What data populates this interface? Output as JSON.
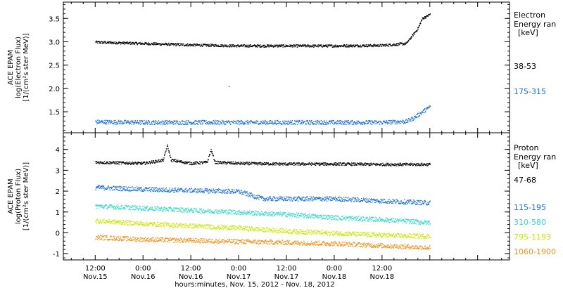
{
  "chart_data": [
    {
      "type": "scatter",
      "ylabel": [
        "ACE EPAM",
        "log(Electron Flux)",
        "[1/(cm²s ster MeV)]"
      ],
      "ylim": [
        1.05,
        3.85
      ],
      "yticks": [
        1.5,
        2.0,
        2.5,
        3.0,
        3.5
      ],
      "ytick_labels": [
        "1.5",
        "2.0",
        "2.5",
        "3.0",
        "3.5"
      ],
      "legend_title": [
        "Electron",
        "Energy ran",
        "[keV]"
      ],
      "series": [
        {
          "name": "38-53",
          "color": "#000000",
          "x": [
            0,
            12,
            24,
            36,
            48,
            60,
            72,
            78,
            81,
            82,
            84
          ],
          "y": [
            3.0,
            2.97,
            2.94,
            2.92,
            2.92,
            2.92,
            2.93,
            2.97,
            3.3,
            3.5,
            3.6
          ]
        },
        {
          "name": "175-315",
          "color": "#1a6fd6",
          "x": [
            0,
            12,
            24,
            36,
            48,
            60,
            72,
            78,
            80,
            82,
            84
          ],
          "y": [
            1.29,
            1.28,
            1.28,
            1.28,
            1.28,
            1.28,
            1.28,
            1.3,
            1.38,
            1.5,
            1.62
          ]
        }
      ],
      "annotations": [
        {
          "x": 33.5,
          "y": 2.05
        }
      ]
    },
    {
      "type": "scatter",
      "ylabel": [
        "ACE EPAM",
        "log(Proton Flux)",
        "[1/(cm²s ster MeV)]"
      ],
      "ylim": [
        -1.3,
        4.8
      ],
      "yticks": [
        -1,
        0,
        1,
        2,
        3,
        4
      ],
      "ytick_labels": [
        "-1",
        "0",
        "1",
        "2",
        "3",
        "4"
      ],
      "legend_title": [
        "Proton",
        "Energy ran",
        "[keV]"
      ],
      "series": [
        {
          "name": "47-68",
          "color": "#000000",
          "x": [
            0,
            12,
            17,
            18,
            19,
            24,
            28,
            29,
            30,
            36,
            48,
            60,
            72,
            84
          ],
          "y": [
            3.4,
            3.35,
            3.5,
            4.2,
            3.5,
            3.35,
            3.4,
            4.0,
            3.4,
            3.35,
            3.32,
            3.32,
            3.3,
            3.3
          ]
        },
        {
          "name": "115-195",
          "color": "#1a6fd6",
          "x": [
            0,
            12,
            24,
            36,
            42,
            48,
            60,
            72,
            84
          ],
          "y": [
            2.2,
            2.1,
            2.05,
            2.0,
            1.65,
            1.65,
            1.65,
            1.55,
            1.45
          ]
        },
        {
          "name": "310-580",
          "color": "#33d9c9",
          "x": [
            0,
            12,
            24,
            36,
            48,
            60,
            72,
            84
          ],
          "y": [
            1.3,
            1.2,
            1.1,
            1.0,
            0.9,
            0.75,
            0.65,
            0.5
          ]
        },
        {
          "name": "795-1193",
          "color": "#c8e600",
          "x": [
            0,
            12,
            24,
            36,
            48,
            60,
            72,
            84
          ],
          "y": [
            0.6,
            0.45,
            0.35,
            0.25,
            0.1,
            0.0,
            -0.1,
            -0.15
          ]
        },
        {
          "name": "1060-1900",
          "color": "#f0921c",
          "x": [
            0,
            12,
            24,
            36,
            48,
            60,
            72,
            84
          ],
          "y": [
            -0.2,
            -0.3,
            -0.35,
            -0.4,
            -0.45,
            -0.5,
            -0.6,
            -0.7
          ]
        }
      ]
    }
  ],
  "xaxis": {
    "xlim": [
      -8,
      104
    ],
    "major_ticks": [
      {
        "x": 0,
        "time": "12:00",
        "date": "Nov.15"
      },
      {
        "x": 12,
        "time": "0:00",
        "date": "Nov.16"
      },
      {
        "x": 24,
        "time": "12:00",
        "date": "Nov.16"
      },
      {
        "x": 36,
        "time": "0:00",
        "date": "Nov.17"
      },
      {
        "x": 48,
        "time": "12:00",
        "date": "Nov.17"
      },
      {
        "x": 60,
        "time": "0:00",
        "date": "Nov.18"
      },
      {
        "x": 72,
        "time": "12:00",
        "date": "Nov.18"
      }
    ],
    "xlabel": "hours:minutes, Nov. 15, 2012 - Nov. 18, 2012"
  }
}
